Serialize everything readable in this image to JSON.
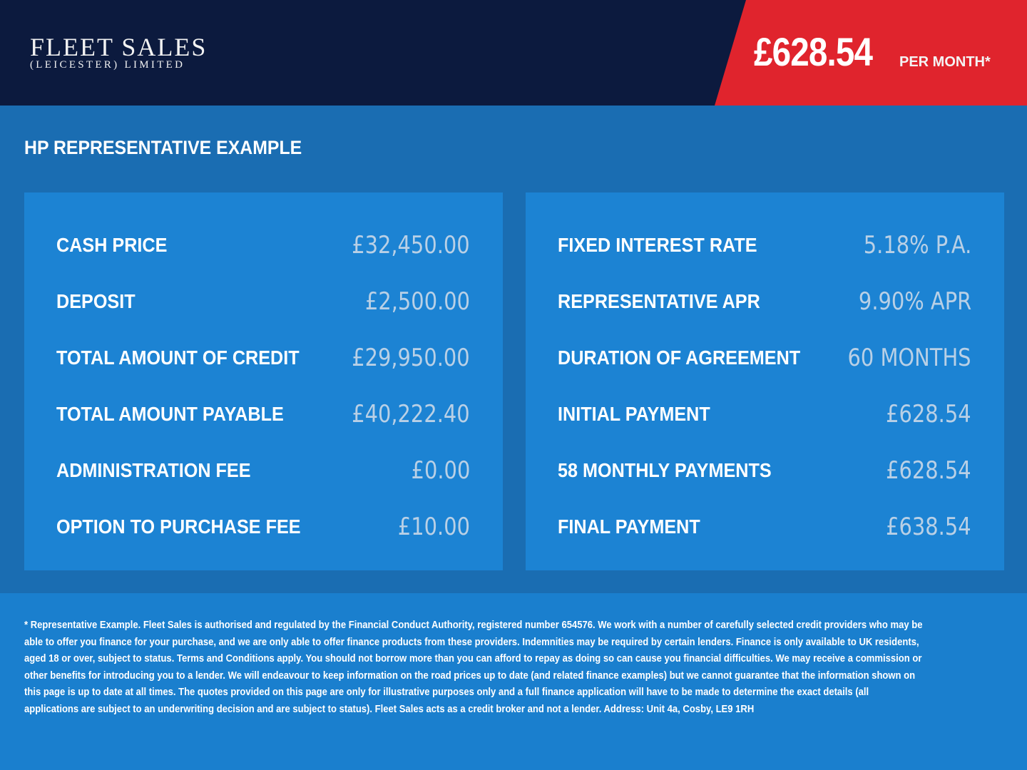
{
  "header": {
    "logo": {
      "line1": "FLEET SALES",
      "line2": "(LEICESTER) LIMITED"
    },
    "price": "£628.54",
    "price_suffix": "PER MONTH*",
    "colors": {
      "navy": "#0c1a3e",
      "red": "#e0242d"
    }
  },
  "section_title": "HP REPRESENTATIVE EXAMPLE",
  "left_panel": [
    {
      "label": "CASH PRICE",
      "value": "£32,450.00"
    },
    {
      "label": "DEPOSIT",
      "value": "£2,500.00"
    },
    {
      "label": "TOTAL AMOUNT OF CREDIT",
      "value": "£29,950.00"
    },
    {
      "label": "TOTAL AMOUNT PAYABLE",
      "value": "£40,222.40"
    },
    {
      "label": "ADMINISTRATION FEE",
      "value": "£0.00"
    },
    {
      "label": "OPTION TO PURCHASE FEE",
      "value": "£10.00"
    }
  ],
  "right_panel": [
    {
      "label": "FIXED INTEREST RATE",
      "value": "5.18% P.A."
    },
    {
      "label": "REPRESENTATIVE APR",
      "value": "9.90% APR"
    },
    {
      "label": "DURATION OF AGREEMENT",
      "value": "60 MONTHS"
    },
    {
      "label": "INITIAL PAYMENT",
      "value": "£628.54"
    },
    {
      "label": "58 MONTHLY PAYMENTS",
      "value": "£628.54"
    },
    {
      "label": "FINAL PAYMENT",
      "value": "£638.54"
    }
  ],
  "disclaimer": "* Representative Example. Fleet Sales is authorised and regulated by the Financial Conduct Authority, registered number 654576. We work with a number of carefully selected credit providers who may be able to offer you finance for your purchase, and we are only able to offer finance products from these providers. Indemnities may be required by certain lenders. Finance is only available to UK residents, aged 18 or over, subject to status. Terms and Conditions apply. You should not borrow more than you can afford to repay as doing so can cause you financial difficulties. We may receive a commission or other benefits for introducing you to a lender. We will endeavour to keep information on the road prices up to date (and related finance examples) but we cannot guarantee that the information shown on this page is up to date at all times. The quotes provided on this page are only for illustrative purposes only and a full finance application will have to be made to determine the exact details (all applications are subject to an underwriting decision and are subject to status). Fleet Sales acts as a credit broker and not a lender. Address: Unit 4a, Cosby, LE9 1RH"
}
